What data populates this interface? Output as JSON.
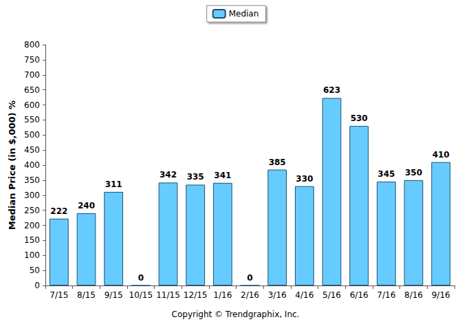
{
  "chart_data": {
    "type": "bar",
    "ylabel": "Median Price (in $,000) %",
    "categories": [
      "7/15",
      "8/15",
      "9/15",
      "10/15",
      "11/15",
      "12/15",
      "1/16",
      "2/16",
      "3/16",
      "4/16",
      "5/16",
      "6/16",
      "7/16",
      "8/16",
      "9/16"
    ],
    "series": [
      {
        "name": "Median",
        "color": "#66ccff",
        "values": [
          222,
          240,
          311,
          0,
          342,
          335,
          341,
          0,
          385,
          330,
          623,
          530,
          345,
          350,
          410
        ]
      }
    ],
    "ylim": [
      0,
      800
    ],
    "yticks": [
      0,
      50,
      100,
      150,
      200,
      250,
      300,
      350,
      400,
      450,
      500,
      550,
      600,
      650,
      700,
      750,
      800
    ],
    "grid": false,
    "legend": "top",
    "data_labels": true,
    "annotations": [
      "Copyright © Trendgraphix, Inc."
    ]
  }
}
